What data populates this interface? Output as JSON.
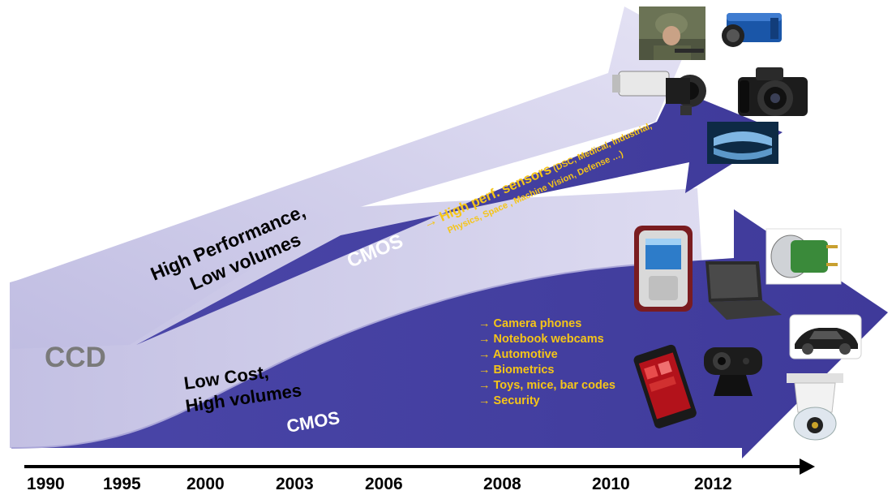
{
  "labels": {
    "ccd": "CCD",
    "high_perf_line1": "High Performance,",
    "high_perf_line2": "Low volumes",
    "low_cost_line1": "Low Cost,",
    "low_cost_line2": "High volumes",
    "cmos_upper": "CMOS",
    "cmos_lower": "CMOS"
  },
  "upper_callout": {
    "line1_main": "→ High perf. sensors",
    "line1_detail": " (DSC, Medical, Industrial,",
    "line2": "Physics, Space , Machine Vision, Defense …)"
  },
  "applications": [
    "→ Camera phones",
    " → Notebook webcams",
    "→ Automotive",
    "→ Biometrics",
    "→ Toys, mice, bar codes",
    "→ Security"
  ],
  "timeline": {
    "years": [
      "1990",
      "1995",
      "2000",
      "2003",
      "2006",
      "2008",
      "2010",
      "2012"
    ]
  },
  "images": [
    {
      "name": "soldier-photo",
      "icon": "soldier"
    },
    {
      "name": "industrial-camera-photo",
      "icon": "industrial-camera"
    },
    {
      "name": "security-camera-photo",
      "icon": "box-camera"
    },
    {
      "name": "dslr-camera-photo",
      "icon": "dslr"
    },
    {
      "name": "dental-xray-photo",
      "icon": "xray"
    },
    {
      "name": "mobile-phone-photo",
      "icon": "phone"
    },
    {
      "name": "laptop-photo",
      "icon": "laptop"
    },
    {
      "name": "capsule-sensor-photo",
      "icon": "capsule"
    },
    {
      "name": "car-photo",
      "icon": "car"
    },
    {
      "name": "touch-phone-photo",
      "icon": "touch-phone"
    },
    {
      "name": "webcam-photo",
      "icon": "webcam"
    },
    {
      "name": "dome-camera-photo",
      "icon": "dome-camera"
    }
  ],
  "colors": {
    "cmos_purple": "#423e9f",
    "ccd_lavender": "#c8c6e6",
    "callout_yellow": "#f5c518",
    "ccd_text_gray": "#7a7a7a"
  }
}
